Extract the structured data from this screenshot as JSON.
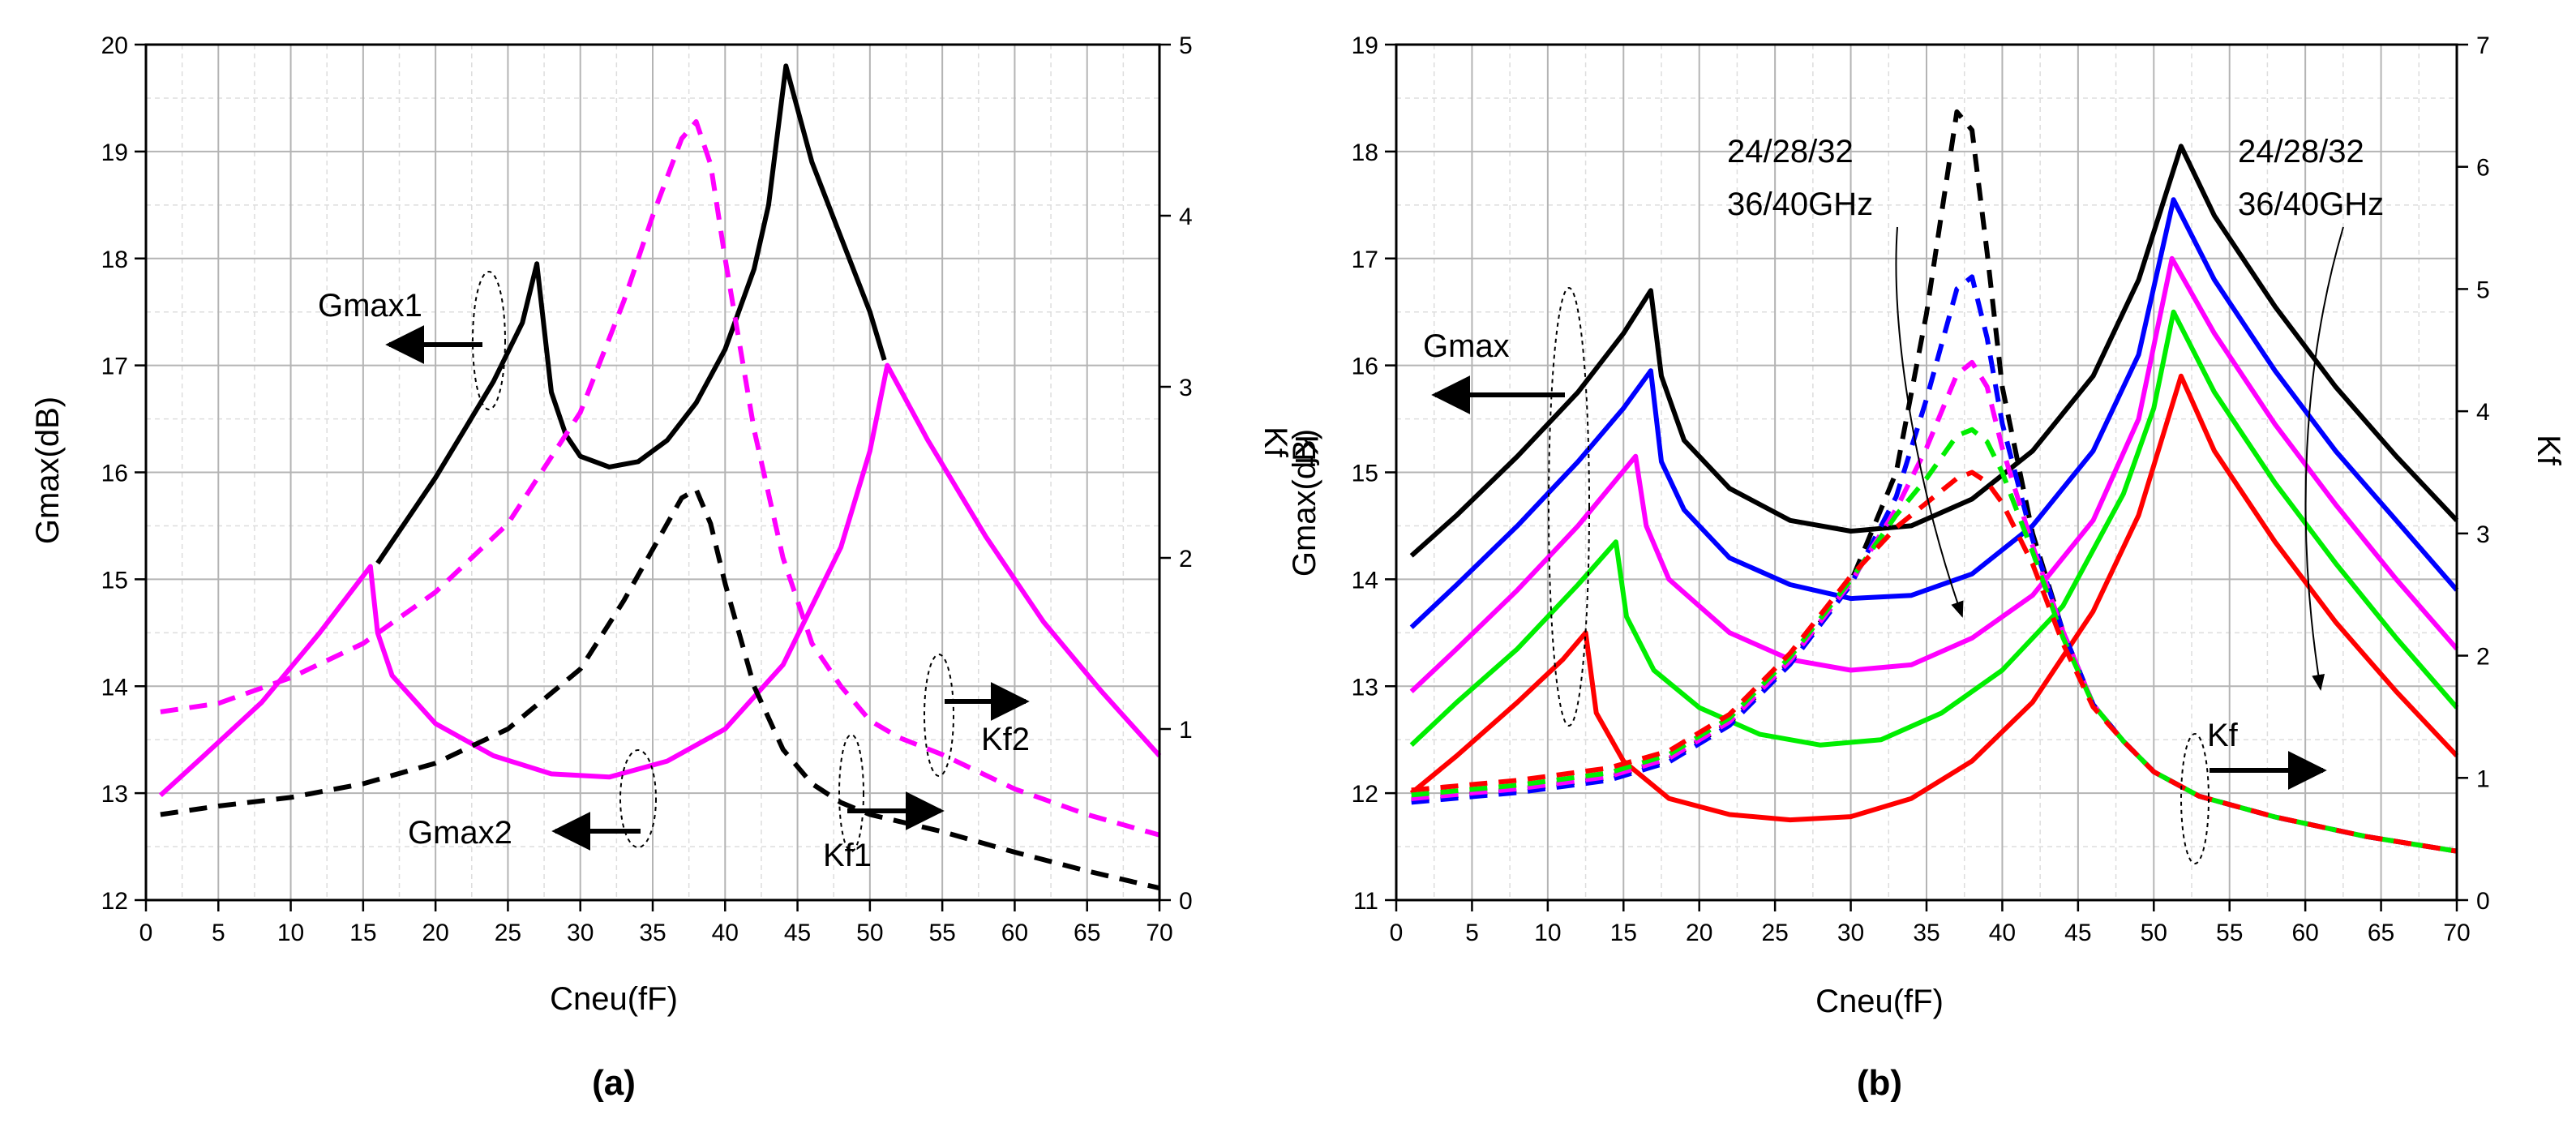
{
  "chart_data": [
    {
      "type": "line",
      "panel_label": "(a)",
      "xlabel": "Cneu(fF)",
      "ylabel": "Gmax(dB)",
      "y2label": "Kf",
      "xlim": [
        0,
        70
      ],
      "ylim": [
        12,
        20
      ],
      "y2lim": [
        0,
        5
      ],
      "xticks": [
        0,
        5,
        10,
        15,
        20,
        25,
        30,
        35,
        40,
        45,
        50,
        55,
        60,
        65,
        70
      ],
      "yticks": [
        12,
        13,
        14,
        15,
        16,
        17,
        18,
        19,
        20
      ],
      "y2ticks": [
        0,
        1,
        2,
        3,
        4,
        5
      ],
      "grid": true,
      "series": [
        {
          "axis": "left",
          "color": "#000000",
          "dash": "solid",
          "x": [
            16,
            18,
            20,
            22,
            24,
            26,
            27,
            28,
            29,
            30,
            32,
            34,
            36,
            38,
            40,
            42,
            43,
            44.2,
            46,
            48,
            50,
            51
          ],
          "y": [
            15.15,
            15.55,
            15.95,
            16.4,
            16.85,
            17.4,
            17.95,
            16.75,
            16.35,
            16.15,
            16.05,
            16.1,
            16.3,
            16.65,
            17.15,
            17.9,
            18.5,
            19.8,
            18.9,
            18.2,
            17.5,
            17.05
          ]
        },
        {
          "axis": "left",
          "color": "#ff00ff",
          "dash": "solid",
          "x": [
            1,
            4,
            8,
            12,
            15.5,
            16,
            17,
            20,
            24,
            28,
            32,
            36,
            40,
            44,
            48,
            50,
            51.2,
            54,
            58,
            62,
            66,
            70
          ],
          "y": [
            12.98,
            13.35,
            13.85,
            14.5,
            15.12,
            14.5,
            14.1,
            13.65,
            13.35,
            13.18,
            13.15,
            13.3,
            13.6,
            14.2,
            15.3,
            16.2,
            17.0,
            16.3,
            15.4,
            14.6,
            13.95,
            13.35
          ]
        },
        {
          "axis": "right",
          "color": "#ff00ff",
          "dash": "dashed",
          "x": [
            1,
            5,
            10,
            15,
            20,
            25,
            30,
            33,
            35,
            37,
            38,
            39,
            40,
            42,
            44,
            46,
            48,
            50,
            52,
            55,
            60,
            65,
            70
          ],
          "y": [
            1.1,
            1.15,
            1.3,
            1.5,
            1.8,
            2.2,
            2.85,
            3.5,
            4.0,
            4.45,
            4.55,
            4.3,
            3.75,
            2.75,
            2.0,
            1.5,
            1.25,
            1.05,
            0.95,
            0.85,
            0.65,
            0.5,
            0.38
          ]
        },
        {
          "axis": "right",
          "color": "#000000",
          "dash": "dashed",
          "x": [
            1,
            5,
            10,
            15,
            20,
            25,
            30,
            33,
            35,
            37,
            38,
            39,
            40,
            42,
            44,
            46,
            48,
            50,
            52,
            55,
            60,
            65,
            70
          ],
          "y": [
            0.5,
            0.55,
            0.6,
            0.68,
            0.8,
            1.0,
            1.35,
            1.75,
            2.05,
            2.35,
            2.4,
            2.2,
            1.85,
            1.25,
            0.88,
            0.68,
            0.57,
            0.5,
            0.46,
            0.4,
            0.28,
            0.17,
            0.07
          ]
        }
      ],
      "annotations": {
        "gmax1": "Gmax1",
        "gmax2": "Gmax2",
        "kf1": "Kf1",
        "kf2": "Kf2"
      }
    },
    {
      "type": "line",
      "panel_label": "(b)",
      "xlabel": "Cneu(fF)",
      "ylabel": "Gmax(dB)",
      "ylabel_overlap": "Kf",
      "y2label": "Kf",
      "xlim": [
        0,
        70
      ],
      "ylim": [
        11,
        19
      ],
      "y2lim": [
        0,
        7
      ],
      "xticks": [
        0,
        5,
        10,
        15,
        20,
        25,
        30,
        35,
        40,
        45,
        50,
        55,
        60,
        65,
        70
      ],
      "yticks": [
        11,
        12,
        13,
        14,
        15,
        16,
        17,
        18,
        19
      ],
      "y2ticks": [
        0,
        1,
        2,
        3,
        4,
        5,
        6,
        7
      ],
      "grid": true,
      "series": [
        {
          "axis": "left",
          "color": "#000000",
          "dash": "solid",
          "x": [
            1,
            4,
            8,
            12,
            15,
            16.8,
            17.5,
            19,
            22,
            26,
            30,
            34,
            38,
            42,
            46,
            49,
            51.8,
            54,
            58,
            62,
            66,
            70
          ],
          "y": [
            14.22,
            14.6,
            15.15,
            15.75,
            16.3,
            16.7,
            15.9,
            15.3,
            14.85,
            14.55,
            14.45,
            14.5,
            14.75,
            15.2,
            15.9,
            16.8,
            18.05,
            17.4,
            16.55,
            15.8,
            15.15,
            14.55
          ]
        },
        {
          "axis": "left",
          "color": "#0000ff",
          "dash": "solid",
          "x": [
            1,
            4,
            8,
            12,
            15,
            16.8,
            17.5,
            19,
            22,
            26,
            30,
            34,
            38,
            42,
            46,
            49,
            51.3,
            54,
            58,
            62,
            66,
            70
          ],
          "y": [
            13.55,
            13.95,
            14.5,
            15.1,
            15.6,
            15.95,
            15.1,
            14.65,
            14.2,
            13.95,
            13.82,
            13.85,
            14.05,
            14.5,
            15.2,
            16.1,
            17.55,
            16.8,
            15.95,
            15.2,
            14.55,
            13.9
          ]
        },
        {
          "axis": "left",
          "color": "#ff00ff",
          "dash": "solid",
          "x": [
            1,
            4,
            8,
            12,
            15.8,
            16.5,
            18,
            22,
            26,
            30,
            34,
            38,
            42,
            46,
            49,
            51.2,
            54,
            58,
            62,
            66,
            70
          ],
          "y": [
            12.95,
            13.35,
            13.9,
            14.5,
            15.15,
            14.5,
            14.0,
            13.5,
            13.25,
            13.15,
            13.2,
            13.45,
            13.85,
            14.55,
            15.5,
            17.0,
            16.3,
            15.45,
            14.7,
            14.0,
            13.35
          ]
        },
        {
          "axis": "left",
          "color": "#00ee00",
          "dash": "solid",
          "x": [
            1,
            4,
            8,
            12,
            14.5,
            15.2,
            17,
            20,
            24,
            28,
            32,
            36,
            40,
            44,
            48,
            50,
            51.3,
            54,
            58,
            62,
            66,
            70
          ],
          "y": [
            12.45,
            12.85,
            13.35,
            13.95,
            14.35,
            13.65,
            13.15,
            12.8,
            12.55,
            12.45,
            12.5,
            12.75,
            13.15,
            13.75,
            14.8,
            15.6,
            16.5,
            15.75,
            14.9,
            14.15,
            13.45,
            12.8
          ]
        },
        {
          "axis": "left",
          "color": "#ff0000",
          "dash": "solid",
          "x": [
            1,
            4,
            8,
            11,
            12.5,
            13.2,
            15,
            18,
            22,
            26,
            30,
            34,
            38,
            42,
            46,
            49,
            51.8,
            54,
            58,
            62,
            66,
            70
          ],
          "y": [
            12.0,
            12.35,
            12.85,
            13.25,
            13.5,
            12.75,
            12.3,
            11.95,
            11.8,
            11.75,
            11.78,
            11.95,
            12.3,
            12.85,
            13.7,
            14.6,
            15.9,
            15.2,
            14.35,
            13.6,
            12.95,
            12.35
          ]
        },
        {
          "axis": "right",
          "color": "#000000",
          "dash": "dashed",
          "x": [
            1,
            8,
            14,
            18,
            22,
            26,
            30,
            33,
            35,
            37,
            38,
            39,
            40,
            42,
            44,
            46,
            48,
            50,
            53,
            58,
            64,
            70
          ],
          "y": [
            0.82,
            0.9,
            1.0,
            1.15,
            1.45,
            1.95,
            2.6,
            3.5,
            4.8,
            6.45,
            6.3,
            5.3,
            4.2,
            3.0,
            2.2,
            1.6,
            1.3,
            1.05,
            0.85,
            0.68,
            0.52,
            0.4
          ]
        },
        {
          "axis": "right",
          "color": "#0000ff",
          "dash": "dashed",
          "x": [
            1,
            8,
            14,
            18,
            22,
            26,
            30,
            33,
            35,
            37,
            38,
            39,
            40,
            42,
            44,
            46,
            48,
            50,
            53,
            58,
            64,
            70
          ],
          "y": [
            0.8,
            0.88,
            0.98,
            1.13,
            1.43,
            1.93,
            2.58,
            3.3,
            4.1,
            5.0,
            5.1,
            4.6,
            3.9,
            2.95,
            2.2,
            1.6,
            1.3,
            1.05,
            0.85,
            0.68,
            0.52,
            0.4
          ]
        },
        {
          "axis": "right",
          "color": "#ff00ff",
          "dash": "dashed",
          "x": [
            1,
            8,
            14,
            18,
            22,
            26,
            30,
            33,
            35,
            37,
            38,
            39,
            40,
            42,
            44,
            46,
            48,
            50,
            53,
            58,
            64,
            70
          ],
          "y": [
            0.83,
            0.91,
            1.01,
            1.16,
            1.46,
            1.96,
            2.6,
            3.2,
            3.7,
            4.3,
            4.4,
            4.2,
            3.7,
            2.9,
            2.2,
            1.6,
            1.3,
            1.05,
            0.85,
            0.68,
            0.52,
            0.4
          ]
        },
        {
          "axis": "right",
          "color": "#00ee00",
          "dash": "dashed",
          "x": [
            1,
            8,
            14,
            18,
            22,
            26,
            30,
            33,
            35,
            37,
            38,
            39,
            40,
            42,
            44,
            46,
            48,
            50,
            53,
            58,
            64,
            70
          ],
          "y": [
            0.86,
            0.94,
            1.04,
            1.19,
            1.49,
            1.99,
            2.62,
            3.15,
            3.45,
            3.8,
            3.85,
            3.75,
            3.5,
            2.85,
            2.15,
            1.6,
            1.3,
            1.05,
            0.85,
            0.68,
            0.52,
            0.4
          ]
        },
        {
          "axis": "right",
          "color": "#ff0000",
          "dash": "dashed",
          "x": [
            1,
            8,
            14,
            18,
            22,
            26,
            30,
            33,
            35,
            37,
            38,
            39,
            40,
            42,
            44,
            46,
            48,
            50,
            53,
            58,
            64,
            70
          ],
          "y": [
            0.9,
            0.98,
            1.08,
            1.22,
            1.52,
            2.02,
            2.65,
            3.05,
            3.25,
            3.45,
            3.5,
            3.42,
            3.25,
            2.75,
            2.1,
            1.58,
            1.3,
            1.05,
            0.85,
            0.68,
            0.52,
            0.4
          ]
        }
      ],
      "annotations": {
        "gmax": "Gmax",
        "kf": "Kf",
        "freq_line1": "24/28/32",
        "freq_line2": "36/40GHz"
      }
    }
  ]
}
